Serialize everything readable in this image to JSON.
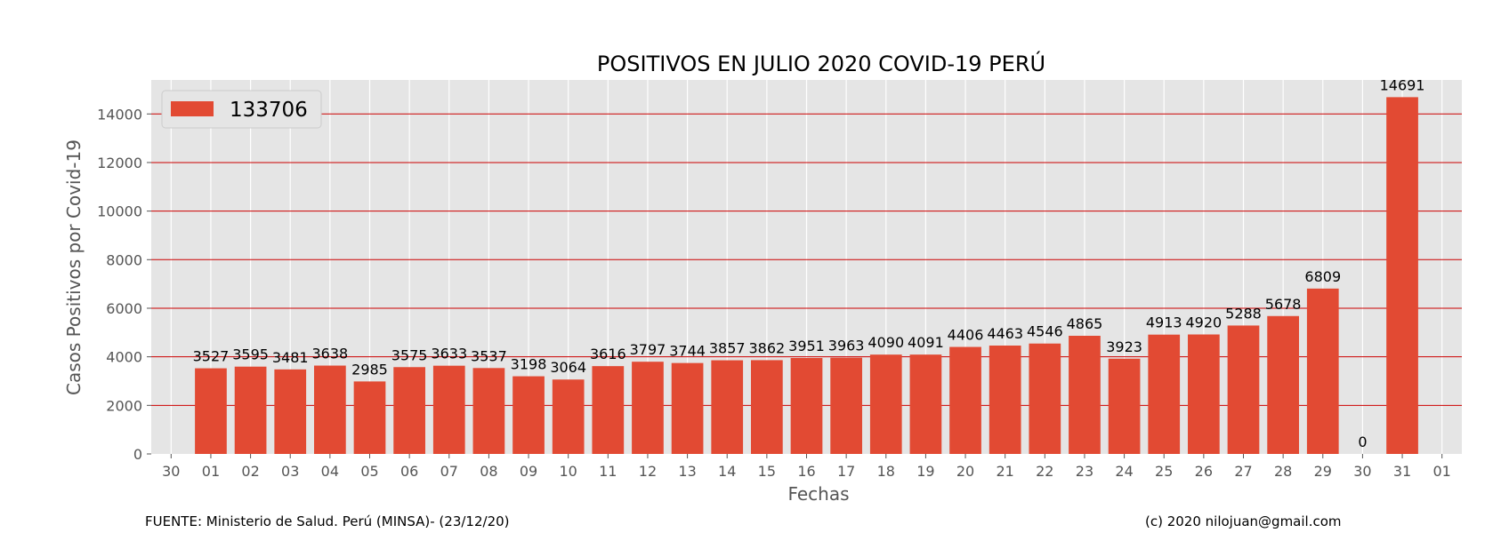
{
  "chart_data": {
    "type": "bar",
    "title": "POSITIVOS EN JULIO 2020 COVID-19 PERÚ",
    "xlabel": "Fechas",
    "ylabel": "Casos Positivos por Covid-19",
    "categories": [
      "30",
      "01",
      "02",
      "03",
      "04",
      "05",
      "06",
      "07",
      "08",
      "09",
      "10",
      "11",
      "12",
      "13",
      "14",
      "15",
      "16",
      "17",
      "18",
      "19",
      "20",
      "21",
      "22",
      "23",
      "24",
      "25",
      "26",
      "27",
      "28",
      "29",
      "30",
      "31",
      "01"
    ],
    "values": [
      null,
      3527,
      3595,
      3481,
      3638,
      2985,
      3575,
      3633,
      3537,
      3198,
      3064,
      3616,
      3797,
      3744,
      3857,
      3862,
      3951,
      3963,
      4090,
      4091,
      4406,
      4463,
      4546,
      4865,
      3923,
      4913,
      4920,
      5288,
      5678,
      6809,
      0,
      14691,
      null
    ],
    "value_labels": [
      "",
      "3527",
      "3595",
      "3481",
      "3638",
      "2985",
      "3575",
      "3633",
      "3537",
      "3198",
      "3064",
      "3616",
      "3797",
      "3744",
      "3857",
      "3862",
      "3951",
      "3963",
      "4090",
      "4091",
      "4406",
      "4463",
      "4546",
      "4865",
      "3923",
      "4913",
      "4920",
      "5288",
      "5678",
      "6809",
      "0",
      "14691",
      ""
    ],
    "yticks": [
      0,
      2000,
      4000,
      6000,
      8000,
      10000,
      12000,
      14000
    ],
    "ytick_labels": [
      "0",
      "2000",
      "4000",
      "6000",
      "8000",
      "10000",
      "12000",
      "14000"
    ],
    "ylim": [
      0,
      15400
    ],
    "legend": {
      "label": "133706",
      "placement": "top-left"
    },
    "grid": true,
    "colors": {
      "bar": "#E24A33",
      "plot_bg": "#E5E5E5",
      "grid_h": "#CC0000",
      "grid_v": "#FFFFFF"
    }
  },
  "footer": {
    "source": "FUENTE: Ministerio de Salud. Perú (MINSA)- (23/12/20)",
    "credit": "(c) 2020 nilojuan@gmail.com"
  }
}
